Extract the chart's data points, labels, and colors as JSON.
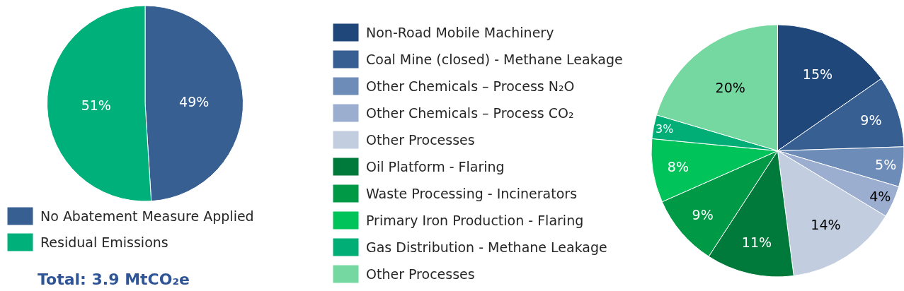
{
  "chart_data": [
    {
      "type": "pie",
      "categories": [
        "No Abatement Measure Applied",
        "Residual Emissions"
      ],
      "values": [
        49,
        51
      ],
      "value_labels": [
        "49%",
        "51%"
      ],
      "colors": [
        "#375f91",
        "#00b07a"
      ],
      "legend": "bottom",
      "annotations": [
        "Total: 3.9 MtCO₂e"
      ]
    },
    {
      "type": "pie",
      "categories": [
        "Non-Road Mobile Machinery",
        "Coal Mine (closed) - Methane Leakage",
        "Other Chemicals – Process N₂O",
        "Other Chemicals – Process CO₂",
        "Other Processes",
        "Oil Platform - Flaring",
        "Waste Processing - Incinerators",
        "Primary Iron Production - Flaring",
        "Gas Distribution - Methane Leakage",
        "Other Processes"
      ],
      "values": [
        15,
        9,
        5,
        4,
        14,
        11,
        9,
        8,
        3,
        20
      ],
      "value_labels": [
        "15%",
        "9%",
        "5%",
        "4%",
        "14%",
        "11%",
        "9%",
        "8%",
        "3%",
        "20%"
      ],
      "colors": [
        "#1f477a",
        "#375f91",
        "#6e8cb8",
        "#9caecf",
        "#c2cde0",
        "#007a3a",
        "#009a47",
        "#00c45a",
        "#00ae76",
        "#74d8a0"
      ],
      "legend": "left"
    }
  ]
}
